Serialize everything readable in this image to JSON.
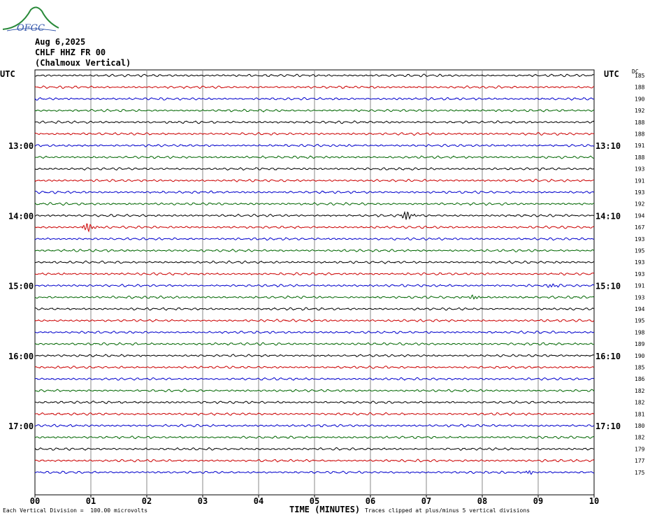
{
  "header": {
    "date": "Aug 6,2025",
    "station": "CHLF HHZ FR 00",
    "location": "(Chalmoux Vertical)",
    "logo_text": "OFGC"
  },
  "labels": {
    "utc_left": "UTC",
    "utc_right": "UTC",
    "dc": "DC"
  },
  "footer": {
    "vertical_division": "Each Vertical Division =  100.00 microvolts",
    "xlabel": "TIME (MINUTES)",
    "clip_note": "Traces clipped at plus/minus 5 vertical divisions"
  },
  "chart_data": {
    "type": "line",
    "title": "",
    "xlabel": "TIME (MINUTES)",
    "ylabel": "",
    "xlim": [
      0,
      10
    ],
    "x_ticks": [
      "00",
      "01",
      "02",
      "03",
      "04",
      "05",
      "06",
      "07",
      "08",
      "09",
      "10"
    ],
    "grid": true,
    "trace_colors": [
      "#000000",
      "#cc0000",
      "#0000cc",
      "#006600"
    ],
    "left_time_labels": [
      {
        "row": 6,
        "label": "13:00"
      },
      {
        "row": 12,
        "label": "14:00"
      },
      {
        "row": 18,
        "label": "15:00"
      },
      {
        "row": 24,
        "label": "16:00"
      },
      {
        "row": 30,
        "label": "17:00"
      }
    ],
    "right_time_labels": [
      {
        "row": 6,
        "label": "13:10"
      },
      {
        "row": 12,
        "label": "14:10"
      },
      {
        "row": 18,
        "label": "15:10"
      },
      {
        "row": 24,
        "label": "16:10"
      },
      {
        "row": 30,
        "label": "17:10"
      }
    ],
    "dc_offsets": [
      185,
      188,
      190,
      192,
      188,
      188,
      191,
      188,
      193,
      191,
      193,
      192,
      194,
      167,
      193,
      195,
      193,
      193,
      191,
      193,
      194,
      195,
      198,
      189,
      190,
      185,
      186,
      182,
      182,
      181,
      180,
      182,
      179,
      177,
      175
    ],
    "events": [
      {
        "row": 12,
        "minute": 6.6,
        "amplitude": 7
      },
      {
        "row": 13,
        "minute": 0.9,
        "amplitude": 7
      },
      {
        "row": 18,
        "minute": 9.2,
        "amplitude": 3
      },
      {
        "row": 19,
        "minute": 7.8,
        "amplitude": 3
      },
      {
        "row": 34,
        "minute": 8.8,
        "amplitude": 3
      }
    ]
  }
}
